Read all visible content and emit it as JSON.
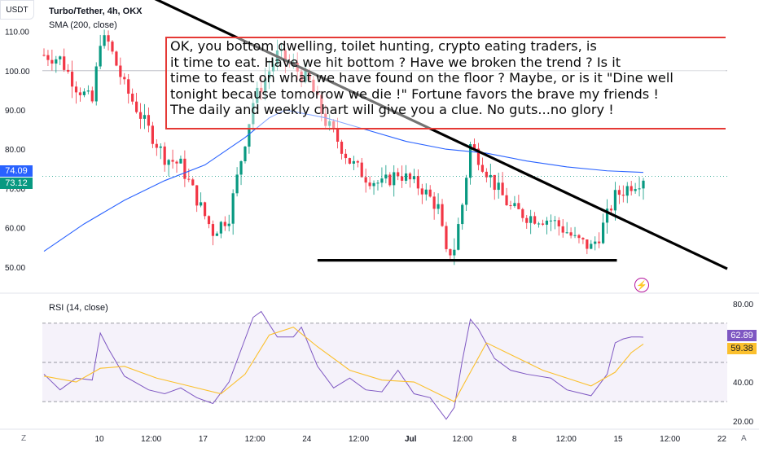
{
  "header": {
    "currency": "USDT",
    "symbol": "Turbo/Tether, 4h, OKX",
    "indicator": "SMA (200, close)",
    "rsi_label": "RSI (14, close)"
  },
  "badges": {
    "sma_value": "74.09",
    "last_price": "73.12",
    "rsi_value": "62.89",
    "rsi_ma_value": "59.38",
    "sma_color": "#2962ff",
    "price_color": "#089981",
    "rsi_color": "#7e57c2",
    "rsi_ma_color": "#fbc02d"
  },
  "annotation": {
    "lines": [
      "OK, you bottom dwelling, toilet hunting, crypto eating traders, is",
      "it time to eat. Have we hit bottom ? Have we broken the trend ? Is it",
      "time to feast on what we have found on the floor ? Maybe, or is it \"Dine well",
      "tonight because tomorrow we die !\" Fortune favors the brave my friends !",
      "The daily and weekly chart will give you a clue. No guts...no glory !"
    ]
  },
  "icons": {
    "alert": "lightning-icon",
    "timezone": "Z",
    "auto_scale": "A"
  },
  "chart_data": [
    {
      "type": "candlestick",
      "title": "Turbo/Tether, 4h, OKX",
      "y_axis_side": "left",
      "ylim": [
        45,
        118
      ],
      "y_ticks": [
        50,
        60,
        70,
        80,
        90,
        100,
        110
      ],
      "y_tick_labels": [
        "50.00",
        "60.00",
        "70.00",
        "80.00",
        "90.00",
        "100.00",
        "110.00"
      ],
      "x_tick_labels": [
        "10",
        "12:00",
        "17",
        "12:00",
        "24",
        "12:00",
        "Jul",
        "12:00",
        "8",
        "12:00",
        "15",
        "12:00",
        "22"
      ],
      "bullish_color": "#089981",
      "bearish_color": "#f23645",
      "price_path": [
        [
          0,
          104
        ],
        [
          4,
          103
        ],
        [
          8,
          96
        ],
        [
          12,
          92
        ],
        [
          14,
          108
        ],
        [
          16,
          107
        ],
        [
          20,
          96
        ],
        [
          26,
          85
        ],
        [
          30,
          78
        ],
        [
          34,
          76
        ],
        [
          40,
          63
        ],
        [
          42,
          59
        ],
        [
          46,
          63
        ],
        [
          52,
          92
        ],
        [
          58,
          104
        ],
        [
          62,
          101
        ],
        [
          66,
          97
        ],
        [
          70,
          87
        ],
        [
          72,
          84
        ],
        [
          76,
          77
        ],
        [
          80,
          73
        ],
        [
          84,
          71
        ],
        [
          88,
          74
        ],
        [
          94,
          70
        ],
        [
          98,
          65
        ],
        [
          100,
          53
        ],
        [
          102,
          55
        ],
        [
          104,
          66
        ],
        [
          106,
          81
        ],
        [
          108,
          78
        ],
        [
          112,
          71
        ],
        [
          116,
          65
        ],
        [
          120,
          63
        ],
        [
          126,
          62
        ],
        [
          130,
          59
        ],
        [
          132,
          57
        ],
        [
          136,
          55
        ],
        [
          138,
          58
        ],
        [
          142,
          68
        ],
        [
          146,
          71
        ],
        [
          148,
          72
        ],
        [
          149,
          73
        ]
      ],
      "sma_200": [
        [
          0,
          54
        ],
        [
          10,
          61
        ],
        [
          20,
          67
        ],
        [
          30,
          72
        ],
        [
          40,
          76
        ],
        [
          50,
          83
        ],
        [
          56,
          88
        ],
        [
          60,
          90
        ],
        [
          70,
          88
        ],
        [
          80,
          85
        ],
        [
          90,
          82
        ],
        [
          100,
          80
        ],
        [
          110,
          79
        ],
        [
          120,
          77
        ],
        [
          130,
          75.5
        ],
        [
          140,
          74.5
        ],
        [
          149,
          74.1
        ]
      ],
      "last_price": 73.12,
      "sma_last": 74.09,
      "drawings": {
        "downtrend_line": [
          [
            22,
            121
          ],
          [
            149,
            53.5
          ]
        ],
        "support_line": [
          [
            68,
            51.5
          ],
          [
            141,
            51.5
          ]
        ],
        "resistance_zone": [
          88,
          112
        ]
      }
    },
    {
      "type": "line",
      "title": "RSI (14, close)",
      "y_axis_side": "right",
      "ylim": [
        18,
        82
      ],
      "y_ticks": [
        20,
        40,
        80
      ],
      "y_tick_labels": [
        "20.00",
        "40.00",
        "80.00"
      ],
      "bands": {
        "upper": 70,
        "middle": 50,
        "lower": 30
      },
      "series": [
        {
          "color": "#7e57c2",
          "points": [
            [
              0,
              44
            ],
            [
              4,
              36
            ],
            [
              8,
              42
            ],
            [
              12,
              41
            ],
            [
              14,
              65
            ],
            [
              16,
              57
            ],
            [
              20,
              43
            ],
            [
              26,
              36
            ],
            [
              30,
              34
            ],
            [
              34,
              37
            ],
            [
              38,
              32
            ],
            [
              42,
              29
            ],
            [
              46,
              40
            ],
            [
              50,
              62
            ],
            [
              52,
              73
            ],
            [
              54,
              76
            ],
            [
              58,
              63
            ],
            [
              62,
              63
            ],
            [
              64,
              68
            ],
            [
              68,
              48
            ],
            [
              72,
              37
            ],
            [
              76,
              42
            ],
            [
              80,
              36
            ],
            [
              84,
              35
            ],
            [
              88,
              46
            ],
            [
              92,
              34
            ],
            [
              96,
              32
            ],
            [
              100,
              21
            ],
            [
              102,
              27
            ],
            [
              104,
              51
            ],
            [
              106,
              72
            ],
            [
              108,
              67
            ],
            [
              112,
              52
            ],
            [
              116,
              46
            ],
            [
              120,
              44
            ],
            [
              126,
              42
            ],
            [
              130,
              36
            ],
            [
              132,
              35
            ],
            [
              136,
              33
            ],
            [
              140,
              44
            ],
            [
              142,
              60
            ],
            [
              144,
              62
            ],
            [
              146,
              63
            ],
            [
              148,
              63
            ],
            [
              149,
              62.89
            ]
          ]
        },
        {
          "color": "#fbc02d",
          "points": [
            [
              0,
              43
            ],
            [
              8,
              40
            ],
            [
              14,
              47
            ],
            [
              20,
              48
            ],
            [
              28,
              42
            ],
            [
              36,
              38
            ],
            [
              44,
              34
            ],
            [
              50,
              44
            ],
            [
              56,
              64
            ],
            [
              62,
              68
            ],
            [
              68,
              58
            ],
            [
              76,
              46
            ],
            [
              84,
              41
            ],
            [
              92,
              40
            ],
            [
              98,
              34
            ],
            [
              102,
              30
            ],
            [
              106,
              45
            ],
            [
              110,
              60
            ],
            [
              116,
              54
            ],
            [
              124,
              46
            ],
            [
              130,
              42
            ],
            [
              136,
              38
            ],
            [
              142,
              45
            ],
            [
              146,
              55
            ],
            [
              149,
              59.38
            ]
          ]
        }
      ],
      "last_values": [
        62.89,
        59.38
      ]
    }
  ]
}
